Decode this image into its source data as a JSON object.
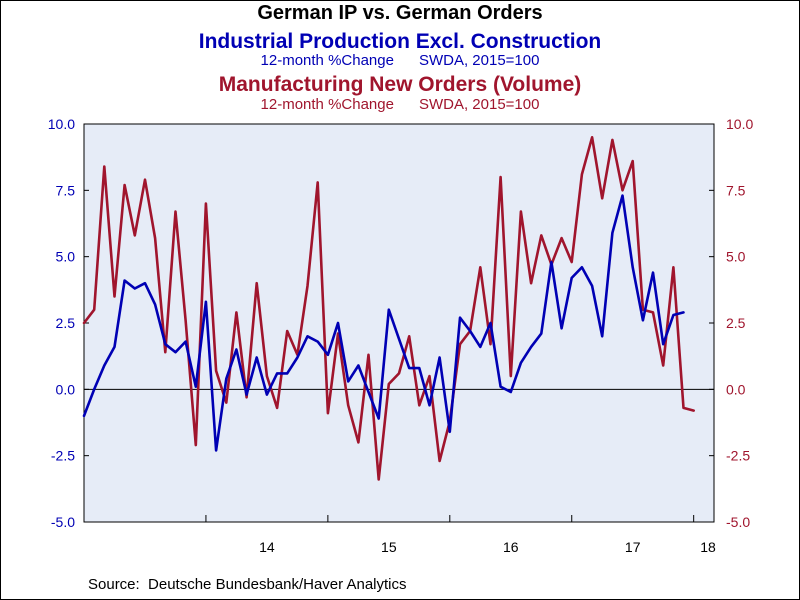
{
  "title": "German IP vs. German Orders",
  "series1_title": "Industrial Production Excl. Construction",
  "series1_subtitle": "12-month %Change      SWDA, 2015=100",
  "series2_title": "Manufacturing New Orders (Volume)",
  "series2_subtitle": "12-month %Change      SWDA, 2015=100",
  "source": "Source:  Deutsche Bundesbank/Haver Analytics",
  "colors": {
    "series1": "#0000b4",
    "series2": "#a0152d",
    "plot_bg": "#e6ecf7"
  },
  "chart_data": {
    "type": "line",
    "title": "German IP vs. German Orders",
    "xlabel": "",
    "ylabel": "",
    "ylim": [
      -5.0,
      10.0
    ],
    "grid": false,
    "legend": "none",
    "x_ticks": [
      "14",
      "15",
      "16",
      "17",
      "18"
    ],
    "y_ticks_left": [
      "10.0",
      "7.5",
      "5.0",
      "2.5",
      "0.0",
      "-2.5",
      "-5.0"
    ],
    "y_ticks_right": [
      "10.0",
      "7.5",
      "5.0",
      "2.5",
      "0.0",
      "-2.5",
      "-5.0"
    ],
    "x_start": "2013-01",
    "x_end": "2018-03",
    "series": [
      {
        "name": "Industrial Production Excl. Construction",
        "axis": "left",
        "start": "2013-01",
        "values": [
          -1.0,
          0.0,
          0.9,
          1.6,
          4.1,
          3.8,
          4.0,
          3.2,
          1.7,
          1.4,
          1.8,
          0.1,
          3.3,
          -2.3,
          0.4,
          1.5,
          -0.2,
          1.2,
          -0.2,
          0.6,
          0.6,
          1.2,
          2.0,
          1.8,
          1.3,
          2.5,
          0.3,
          0.9,
          -0.1,
          -1.1,
          3.0,
          1.9,
          0.8,
          0.8,
          -0.6,
          1.2,
          -1.6,
          2.7,
          2.2,
          1.6,
          2.5,
          0.1,
          -0.1,
          1.0,
          1.6,
          2.1,
          4.8,
          2.3,
          4.2,
          4.6,
          3.9,
          2.0,
          5.9,
          7.3,
          4.6,
          2.6,
          4.4,
          1.7,
          2.8,
          2.9
        ]
      },
      {
        "name": "Manufacturing New Orders (Volume)",
        "axis": "right",
        "start": "2013-01",
        "values": [
          2.5,
          3.0,
          8.4,
          3.5,
          7.7,
          5.8,
          7.9,
          5.7,
          1.4,
          6.7,
          2.6,
          -2.1,
          7.0,
          0.7,
          -0.5,
          2.9,
          -0.3,
          4.0,
          0.5,
          -0.7,
          2.2,
          1.3,
          3.9,
          7.8,
          -0.9,
          2.1,
          -0.6,
          -2.0,
          1.3,
          -3.4,
          0.2,
          0.6,
          2.0,
          -0.6,
          0.5,
          -2.7,
          -1.2,
          1.7,
          2.2,
          4.6,
          1.7,
          8.0,
          0.5,
          6.7,
          4.0,
          5.8,
          4.7,
          5.7,
          4.8,
          8.1,
          9.5,
          7.2,
          9.4,
          7.5,
          8.6,
          3.0,
          2.9,
          0.9,
          4.6,
          -0.7,
          -0.8
        ]
      }
    ]
  }
}
